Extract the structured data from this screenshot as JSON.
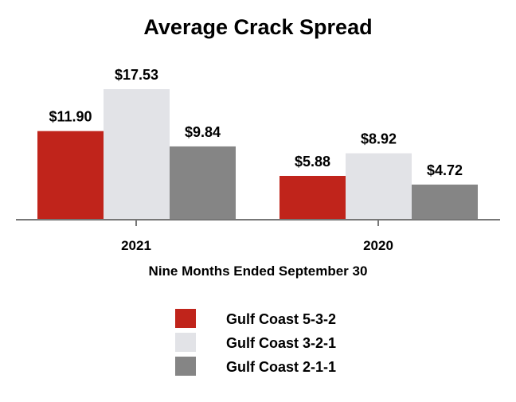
{
  "chart_data": {
    "type": "bar",
    "title": "Average Crack Spread",
    "xlabel": "Nine Months Ended September 30",
    "ylabel": "",
    "categories": [
      "2021",
      "2020"
    ],
    "series": [
      {
        "name": "Gulf Coast 5-3-2",
        "values": [
          11.9,
          5.88
        ],
        "labels": [
          "$11.90",
          "$5.88"
        ],
        "color": "#c0241b"
      },
      {
        "name": "Gulf Coast 3-2-1",
        "values": [
          17.53,
          8.92
        ],
        "labels": [
          "$17.53",
          "$8.92"
        ],
        "color": "#e2e3e7"
      },
      {
        "name": "Gulf Coast 2-1-1",
        "values": [
          9.84,
          4.72
        ],
        "labels": [
          "$9.84",
          "$4.72"
        ],
        "color": "#858585"
      }
    ],
    "ylim": [
      0,
      20
    ],
    "grid": false,
    "legend_position": "bottom-center"
  }
}
